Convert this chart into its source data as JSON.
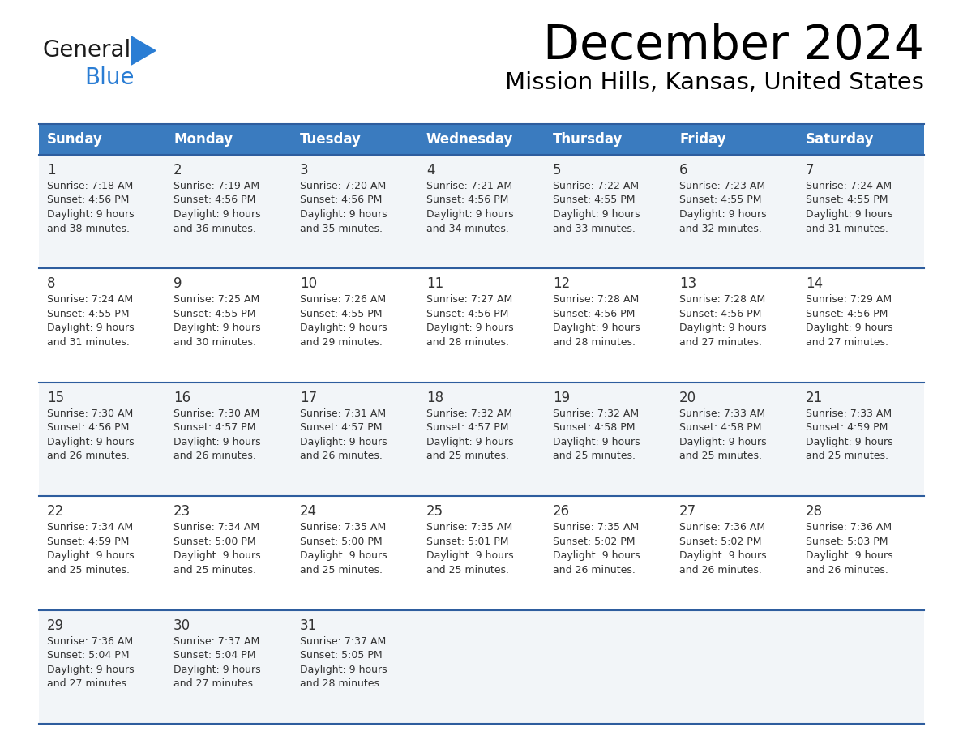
{
  "title": "December 2024",
  "subtitle": "Mission Hills, Kansas, United States",
  "days_of_week": [
    "Sunday",
    "Monday",
    "Tuesday",
    "Wednesday",
    "Thursday",
    "Friday",
    "Saturday"
  ],
  "header_bg": "#3a7bbf",
  "header_text": "#ffffff",
  "row_bg_odd": "#f2f5f8",
  "row_bg_even": "#ffffff",
  "separator_color": "#2e5d9e",
  "text_color": "#333333",
  "logo_general_color": "#1a1a1a",
  "logo_blue_color": "#2a7dd4",
  "logo_triangle_color": "#2a7dd4",
  "calendar_data": [
    [
      {
        "day": 1,
        "sunrise": "7:18 AM",
        "sunset": "4:56 PM",
        "daylight": "9 hours and 38 minutes"
      },
      {
        "day": 2,
        "sunrise": "7:19 AM",
        "sunset": "4:56 PM",
        "daylight": "9 hours and 36 minutes"
      },
      {
        "day": 3,
        "sunrise": "7:20 AM",
        "sunset": "4:56 PM",
        "daylight": "9 hours and 35 minutes"
      },
      {
        "day": 4,
        "sunrise": "7:21 AM",
        "sunset": "4:56 PM",
        "daylight": "9 hours and 34 minutes"
      },
      {
        "day": 5,
        "sunrise": "7:22 AM",
        "sunset": "4:55 PM",
        "daylight": "9 hours and 33 minutes"
      },
      {
        "day": 6,
        "sunrise": "7:23 AM",
        "sunset": "4:55 PM",
        "daylight": "9 hours and 32 minutes"
      },
      {
        "day": 7,
        "sunrise": "7:24 AM",
        "sunset": "4:55 PM",
        "daylight": "9 hours and 31 minutes"
      }
    ],
    [
      {
        "day": 8,
        "sunrise": "7:24 AM",
        "sunset": "4:55 PM",
        "daylight": "9 hours and 31 minutes"
      },
      {
        "day": 9,
        "sunrise": "7:25 AM",
        "sunset": "4:55 PM",
        "daylight": "9 hours and 30 minutes"
      },
      {
        "day": 10,
        "sunrise": "7:26 AM",
        "sunset": "4:55 PM",
        "daylight": "9 hours and 29 minutes"
      },
      {
        "day": 11,
        "sunrise": "7:27 AM",
        "sunset": "4:56 PM",
        "daylight": "9 hours and 28 minutes"
      },
      {
        "day": 12,
        "sunrise": "7:28 AM",
        "sunset": "4:56 PM",
        "daylight": "9 hours and 28 minutes"
      },
      {
        "day": 13,
        "sunrise": "7:28 AM",
        "sunset": "4:56 PM",
        "daylight": "9 hours and 27 minutes"
      },
      {
        "day": 14,
        "sunrise": "7:29 AM",
        "sunset": "4:56 PM",
        "daylight": "9 hours and 27 minutes"
      }
    ],
    [
      {
        "day": 15,
        "sunrise": "7:30 AM",
        "sunset": "4:56 PM",
        "daylight": "9 hours and 26 minutes"
      },
      {
        "day": 16,
        "sunrise": "7:30 AM",
        "sunset": "4:57 PM",
        "daylight": "9 hours and 26 minutes"
      },
      {
        "day": 17,
        "sunrise": "7:31 AM",
        "sunset": "4:57 PM",
        "daylight": "9 hours and 26 minutes"
      },
      {
        "day": 18,
        "sunrise": "7:32 AM",
        "sunset": "4:57 PM",
        "daylight": "9 hours and 25 minutes"
      },
      {
        "day": 19,
        "sunrise": "7:32 AM",
        "sunset": "4:58 PM",
        "daylight": "9 hours and 25 minutes"
      },
      {
        "day": 20,
        "sunrise": "7:33 AM",
        "sunset": "4:58 PM",
        "daylight": "9 hours and 25 minutes"
      },
      {
        "day": 21,
        "sunrise": "7:33 AM",
        "sunset": "4:59 PM",
        "daylight": "9 hours and 25 minutes"
      }
    ],
    [
      {
        "day": 22,
        "sunrise": "7:34 AM",
        "sunset": "4:59 PM",
        "daylight": "9 hours and 25 minutes"
      },
      {
        "day": 23,
        "sunrise": "7:34 AM",
        "sunset": "5:00 PM",
        "daylight": "9 hours and 25 minutes"
      },
      {
        "day": 24,
        "sunrise": "7:35 AM",
        "sunset": "5:00 PM",
        "daylight": "9 hours and 25 minutes"
      },
      {
        "day": 25,
        "sunrise": "7:35 AM",
        "sunset": "5:01 PM",
        "daylight": "9 hours and 25 minutes"
      },
      {
        "day": 26,
        "sunrise": "7:35 AM",
        "sunset": "5:02 PM",
        "daylight": "9 hours and 26 minutes"
      },
      {
        "day": 27,
        "sunrise": "7:36 AM",
        "sunset": "5:02 PM",
        "daylight": "9 hours and 26 minutes"
      },
      {
        "day": 28,
        "sunrise": "7:36 AM",
        "sunset": "5:03 PM",
        "daylight": "9 hours and 26 minutes"
      }
    ],
    [
      {
        "day": 29,
        "sunrise": "7:36 AM",
        "sunset": "5:04 PM",
        "daylight": "9 hours and 27 minutes"
      },
      {
        "day": 30,
        "sunrise": "7:37 AM",
        "sunset": "5:04 PM",
        "daylight": "9 hours and 27 minutes"
      },
      {
        "day": 31,
        "sunrise": "7:37 AM",
        "sunset": "5:05 PM",
        "daylight": "9 hours and 28 minutes"
      },
      null,
      null,
      null,
      null
    ]
  ]
}
